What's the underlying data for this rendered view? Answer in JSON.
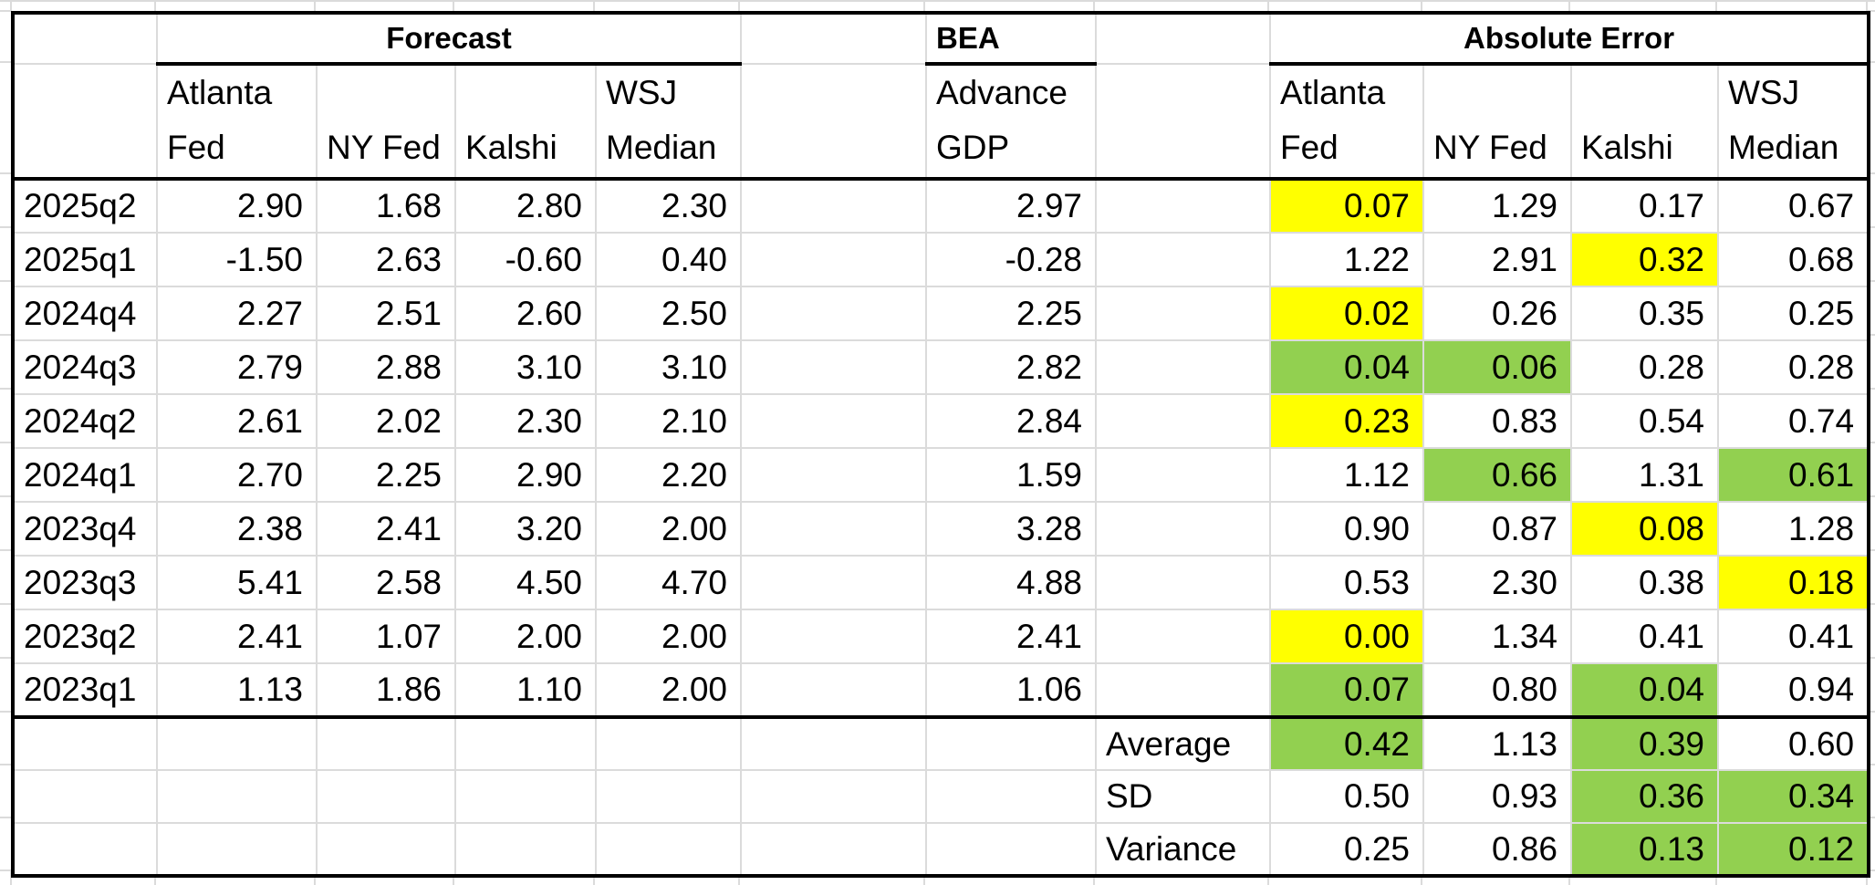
{
  "headers": {
    "forecast_group": "Forecast",
    "bea_group": "BEA",
    "error_group": "Absolute Error",
    "forecast_columns": [
      "Atlanta Fed",
      "NY Fed",
      "Kalshi",
      "WSJ Median"
    ],
    "bea_column": "Advance GDP",
    "error_columns": [
      "Atlanta Fed",
      "NY Fed",
      "Kalshi",
      "WSJ Median"
    ]
  },
  "colors": {
    "highlight_yellow": "#ffff00",
    "highlight_green": "#92d050",
    "gridline": "#dbdbdb",
    "border": "#000000"
  },
  "table": {
    "rows": [
      {
        "label": "2025q2",
        "forecast": [
          "2.90",
          "1.68",
          "2.80",
          "2.30"
        ],
        "bea": "2.97",
        "errors": [
          {
            "v": "0.07",
            "bg": "yellow"
          },
          {
            "v": "1.29"
          },
          {
            "v": "0.17"
          },
          {
            "v": "0.67"
          }
        ]
      },
      {
        "label": "2025q1",
        "forecast": [
          "-1.50",
          "2.63",
          "-0.60",
          "0.40"
        ],
        "bea": "-0.28",
        "errors": [
          {
            "v": "1.22"
          },
          {
            "v": "2.91"
          },
          {
            "v": "0.32",
            "bg": "yellow"
          },
          {
            "v": "0.68"
          }
        ]
      },
      {
        "label": "2024q4",
        "forecast": [
          "2.27",
          "2.51",
          "2.60",
          "2.50"
        ],
        "bea": "2.25",
        "errors": [
          {
            "v": "0.02",
            "bg": "yellow"
          },
          {
            "v": "0.26"
          },
          {
            "v": "0.35"
          },
          {
            "v": "0.25"
          }
        ]
      },
      {
        "label": "2024q3",
        "forecast": [
          "2.79",
          "2.88",
          "3.10",
          "3.10"
        ],
        "bea": "2.82",
        "errors": [
          {
            "v": "0.04",
            "bg": "green"
          },
          {
            "v": "0.06",
            "bg": "green"
          },
          {
            "v": "0.28"
          },
          {
            "v": "0.28"
          }
        ]
      },
      {
        "label": "2024q2",
        "forecast": [
          "2.61",
          "2.02",
          "2.30",
          "2.10"
        ],
        "bea": "2.84",
        "errors": [
          {
            "v": "0.23",
            "bg": "yellow"
          },
          {
            "v": "0.83"
          },
          {
            "v": "0.54"
          },
          {
            "v": "0.74"
          }
        ]
      },
      {
        "label": "2024q1",
        "forecast": [
          "2.70",
          "2.25",
          "2.90",
          "2.20"
        ],
        "bea": "1.59",
        "errors": [
          {
            "v": "1.12"
          },
          {
            "v": "0.66",
            "bg": "green"
          },
          {
            "v": "1.31"
          },
          {
            "v": "0.61",
            "bg": "green"
          }
        ]
      },
      {
        "label": "2023q4",
        "forecast": [
          "2.38",
          "2.41",
          "3.20",
          "2.00"
        ],
        "bea": "3.28",
        "errors": [
          {
            "v": "0.90"
          },
          {
            "v": "0.87"
          },
          {
            "v": "0.08",
            "bg": "yellow"
          },
          {
            "v": "1.28"
          }
        ]
      },
      {
        "label": "2023q3",
        "forecast": [
          "5.41",
          "2.58",
          "4.50",
          "4.70"
        ],
        "bea": "4.88",
        "errors": [
          {
            "v": "0.53"
          },
          {
            "v": "2.30"
          },
          {
            "v": "0.38"
          },
          {
            "v": "0.18",
            "bg": "yellow"
          }
        ]
      },
      {
        "label": "2023q2",
        "forecast": [
          "2.41",
          "1.07",
          "2.00",
          "2.00"
        ],
        "bea": "2.41",
        "errors": [
          {
            "v": "0.00",
            "bg": "yellow"
          },
          {
            "v": "1.34"
          },
          {
            "v": "0.41"
          },
          {
            "v": "0.41"
          }
        ]
      },
      {
        "label": "2023q1",
        "forecast": [
          "1.13",
          "1.86",
          "1.10",
          "2.00"
        ],
        "bea": "1.06",
        "errors": [
          {
            "v": "0.07",
            "bg": "green"
          },
          {
            "v": "0.80"
          },
          {
            "v": "0.04",
            "bg": "green"
          },
          {
            "v": "0.94"
          }
        ]
      }
    ],
    "summary": [
      {
        "label": "Average",
        "values": [
          {
            "v": "0.42",
            "bg": "green"
          },
          {
            "v": "1.13"
          },
          {
            "v": "0.39",
            "bg": "green"
          },
          {
            "v": "0.60"
          }
        ]
      },
      {
        "label": "SD",
        "values": [
          {
            "v": "0.50"
          },
          {
            "v": "0.93"
          },
          {
            "v": "0.36",
            "bg": "green"
          },
          {
            "v": "0.34",
            "bg": "green"
          }
        ]
      },
      {
        "label": "Variance",
        "values": [
          {
            "v": "0.25"
          },
          {
            "v": "0.86"
          },
          {
            "v": "0.13",
            "bg": "green"
          },
          {
            "v": "0.12",
            "bg": "green"
          }
        ]
      }
    ]
  }
}
